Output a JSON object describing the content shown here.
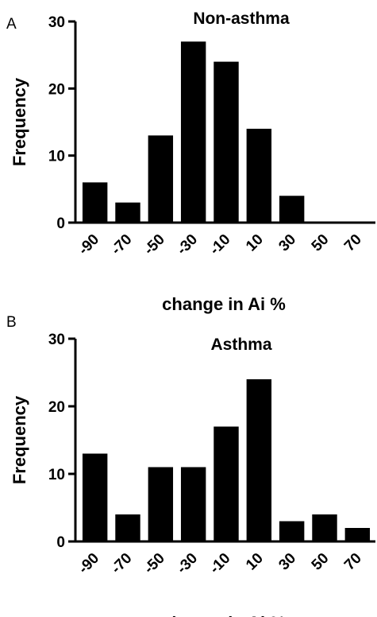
{
  "chart_data": [
    {
      "panel": "A",
      "type": "bar",
      "title": "Non-asthma",
      "xlabel": "change in Ai %",
      "ylabel": "Frequency",
      "categories": [
        "-90",
        "-70",
        "-50",
        "-30",
        "-10",
        "10",
        "30",
        "50",
        "70"
      ],
      "values": [
        6,
        3,
        13,
        27,
        24,
        14,
        4,
        0,
        0
      ],
      "ylim": [
        0,
        30
      ],
      "yticks": [
        "0",
        "10",
        "20",
        "30"
      ],
      "grid": false,
      "color": "#000000"
    },
    {
      "panel": "B",
      "type": "bar",
      "title": "Asthma",
      "xlabel": "change in Ai %",
      "ylabel": "Frequency",
      "categories": [
        "-90",
        "-70",
        "-50",
        "-30",
        "-10",
        "10",
        "30",
        "50",
        "70"
      ],
      "values": [
        13,
        4,
        11,
        11,
        17,
        24,
        3,
        4,
        2
      ],
      "ylim": [
        0,
        30
      ],
      "yticks": [
        "0",
        "10",
        "20",
        "30"
      ],
      "grid": false,
      "color": "#000000"
    }
  ]
}
